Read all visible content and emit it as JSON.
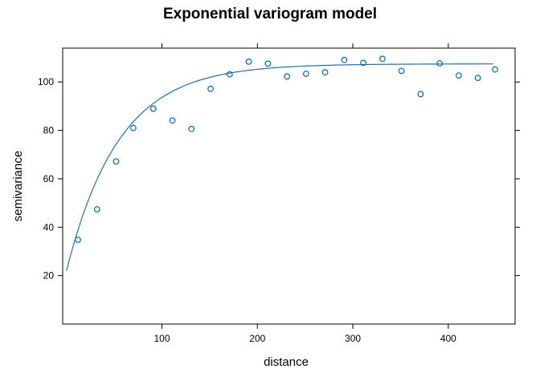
{
  "chart_data": {
    "type": "scatter",
    "title": "Exponential variogram model",
    "xlabel": "distance",
    "ylabel": "semivariance",
    "xlim": [
      -4,
      470
    ],
    "ylim": [
      0,
      114
    ],
    "x_ticks": [
      100,
      200,
      300,
      400
    ],
    "y_ticks": [
      20,
      40,
      60,
      80,
      100
    ],
    "grid": false,
    "legend": "none",
    "point_color": "#0066b3",
    "line_color": "#1f6fb2",
    "points": {
      "x": [
        12,
        32,
        52,
        70,
        91,
        111,
        131,
        151,
        171,
        191,
        211,
        231,
        251,
        271,
        291,
        311,
        331,
        351,
        371,
        391,
        411,
        431,
        449
      ],
      "y": [
        34.8,
        47.4,
        67.2,
        81.0,
        89.0,
        84.1,
        80.6,
        97.2,
        103.2,
        108.4,
        107.6,
        102.3,
        103.4,
        104.0,
        109.1,
        107.9,
        109.6,
        104.6,
        95.0,
        107.7,
        102.7,
        101.7,
        105.2
      ]
    },
    "model": {
      "name": "Exponential",
      "nugget": 22,
      "psill": 85.5,
      "range": 55,
      "x_from": 0,
      "x_to": 447
    }
  }
}
